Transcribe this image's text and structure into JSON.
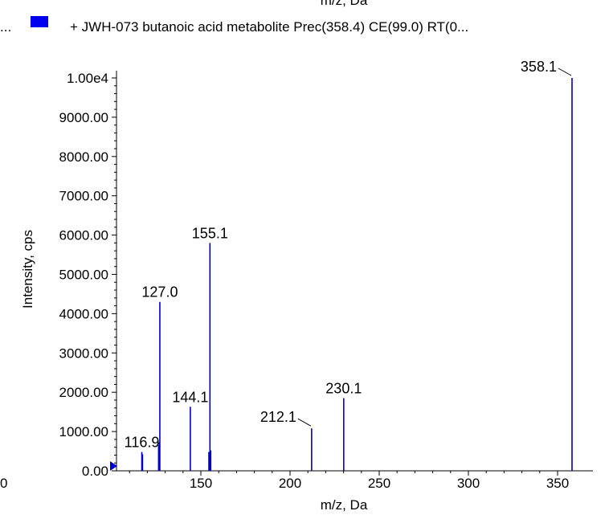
{
  "chart_data": {
    "type": "bar",
    "top_clipped_label": "m/z, Da",
    "legend": {
      "leading_text": "...",
      "entry": "+ JWH-073 butanoic acid metabolite Prec(358.4) CE(99.0) RT(0...",
      "swatch_color": "#0000ee"
    },
    "xlabel": "m/z, Da",
    "ylabel": "Intensity, cps",
    "xlim": [
      100,
      360
    ],
    "ylim": [
      0,
      10000
    ],
    "x_ticks": [
      150,
      200,
      250,
      300,
      350
    ],
    "x_tick_labels": [
      "150",
      "200",
      "250",
      "300",
      "350"
    ],
    "x_origin_label": "0",
    "y_ticks": [
      0,
      1000,
      2000,
      3000,
      4000,
      5000,
      6000,
      7000,
      8000,
      9000,
      10000
    ],
    "y_tick_labels": [
      "0.00",
      "1000.00",
      "2000.00",
      "3000.00",
      "4000.00",
      "5000.00",
      "6000.00",
      "7000.00",
      "8000.00",
      "9000.00",
      "1.00e4"
    ],
    "series_color": "#0000cc",
    "peaks": [
      {
        "mz": 116.9,
        "intensity": 480
      },
      {
        "mz": 117.3,
        "intensity": 420
      },
      {
        "mz": 126.3,
        "intensity": 650
      },
      {
        "mz": 126.6,
        "intensity": 720
      },
      {
        "mz": 127.0,
        "intensity": 4300
      },
      {
        "mz": 144.1,
        "intensity": 1630
      },
      {
        "mz": 154.5,
        "intensity": 480
      },
      {
        "mz": 155.1,
        "intensity": 5800
      },
      {
        "mz": 155.5,
        "intensity": 520
      },
      {
        "mz": 212.1,
        "intensity": 1080
      },
      {
        "mz": 230.1,
        "intensity": 1850
      },
      {
        "mz": 358.1,
        "intensity": 10000
      }
    ],
    "peak_labels": [
      {
        "text": "116.9",
        "mz": 116.9,
        "intensity": 480,
        "leader": false
      },
      {
        "text": "127.0",
        "mz": 127.0,
        "intensity": 4300,
        "leader": false
      },
      {
        "text": "144.1",
        "mz": 144.1,
        "intensity": 1630,
        "leader": false
      },
      {
        "text": "155.1",
        "mz": 155.1,
        "intensity": 5800,
        "leader": false
      },
      {
        "text": "212.1",
        "mz": 212.1,
        "intensity": 1080,
        "leader": true
      },
      {
        "text": "230.1",
        "mz": 230.1,
        "intensity": 1850,
        "leader": false
      },
      {
        "text": "358.1",
        "mz": 358.1,
        "intensity": 10000,
        "leader": true
      }
    ]
  }
}
